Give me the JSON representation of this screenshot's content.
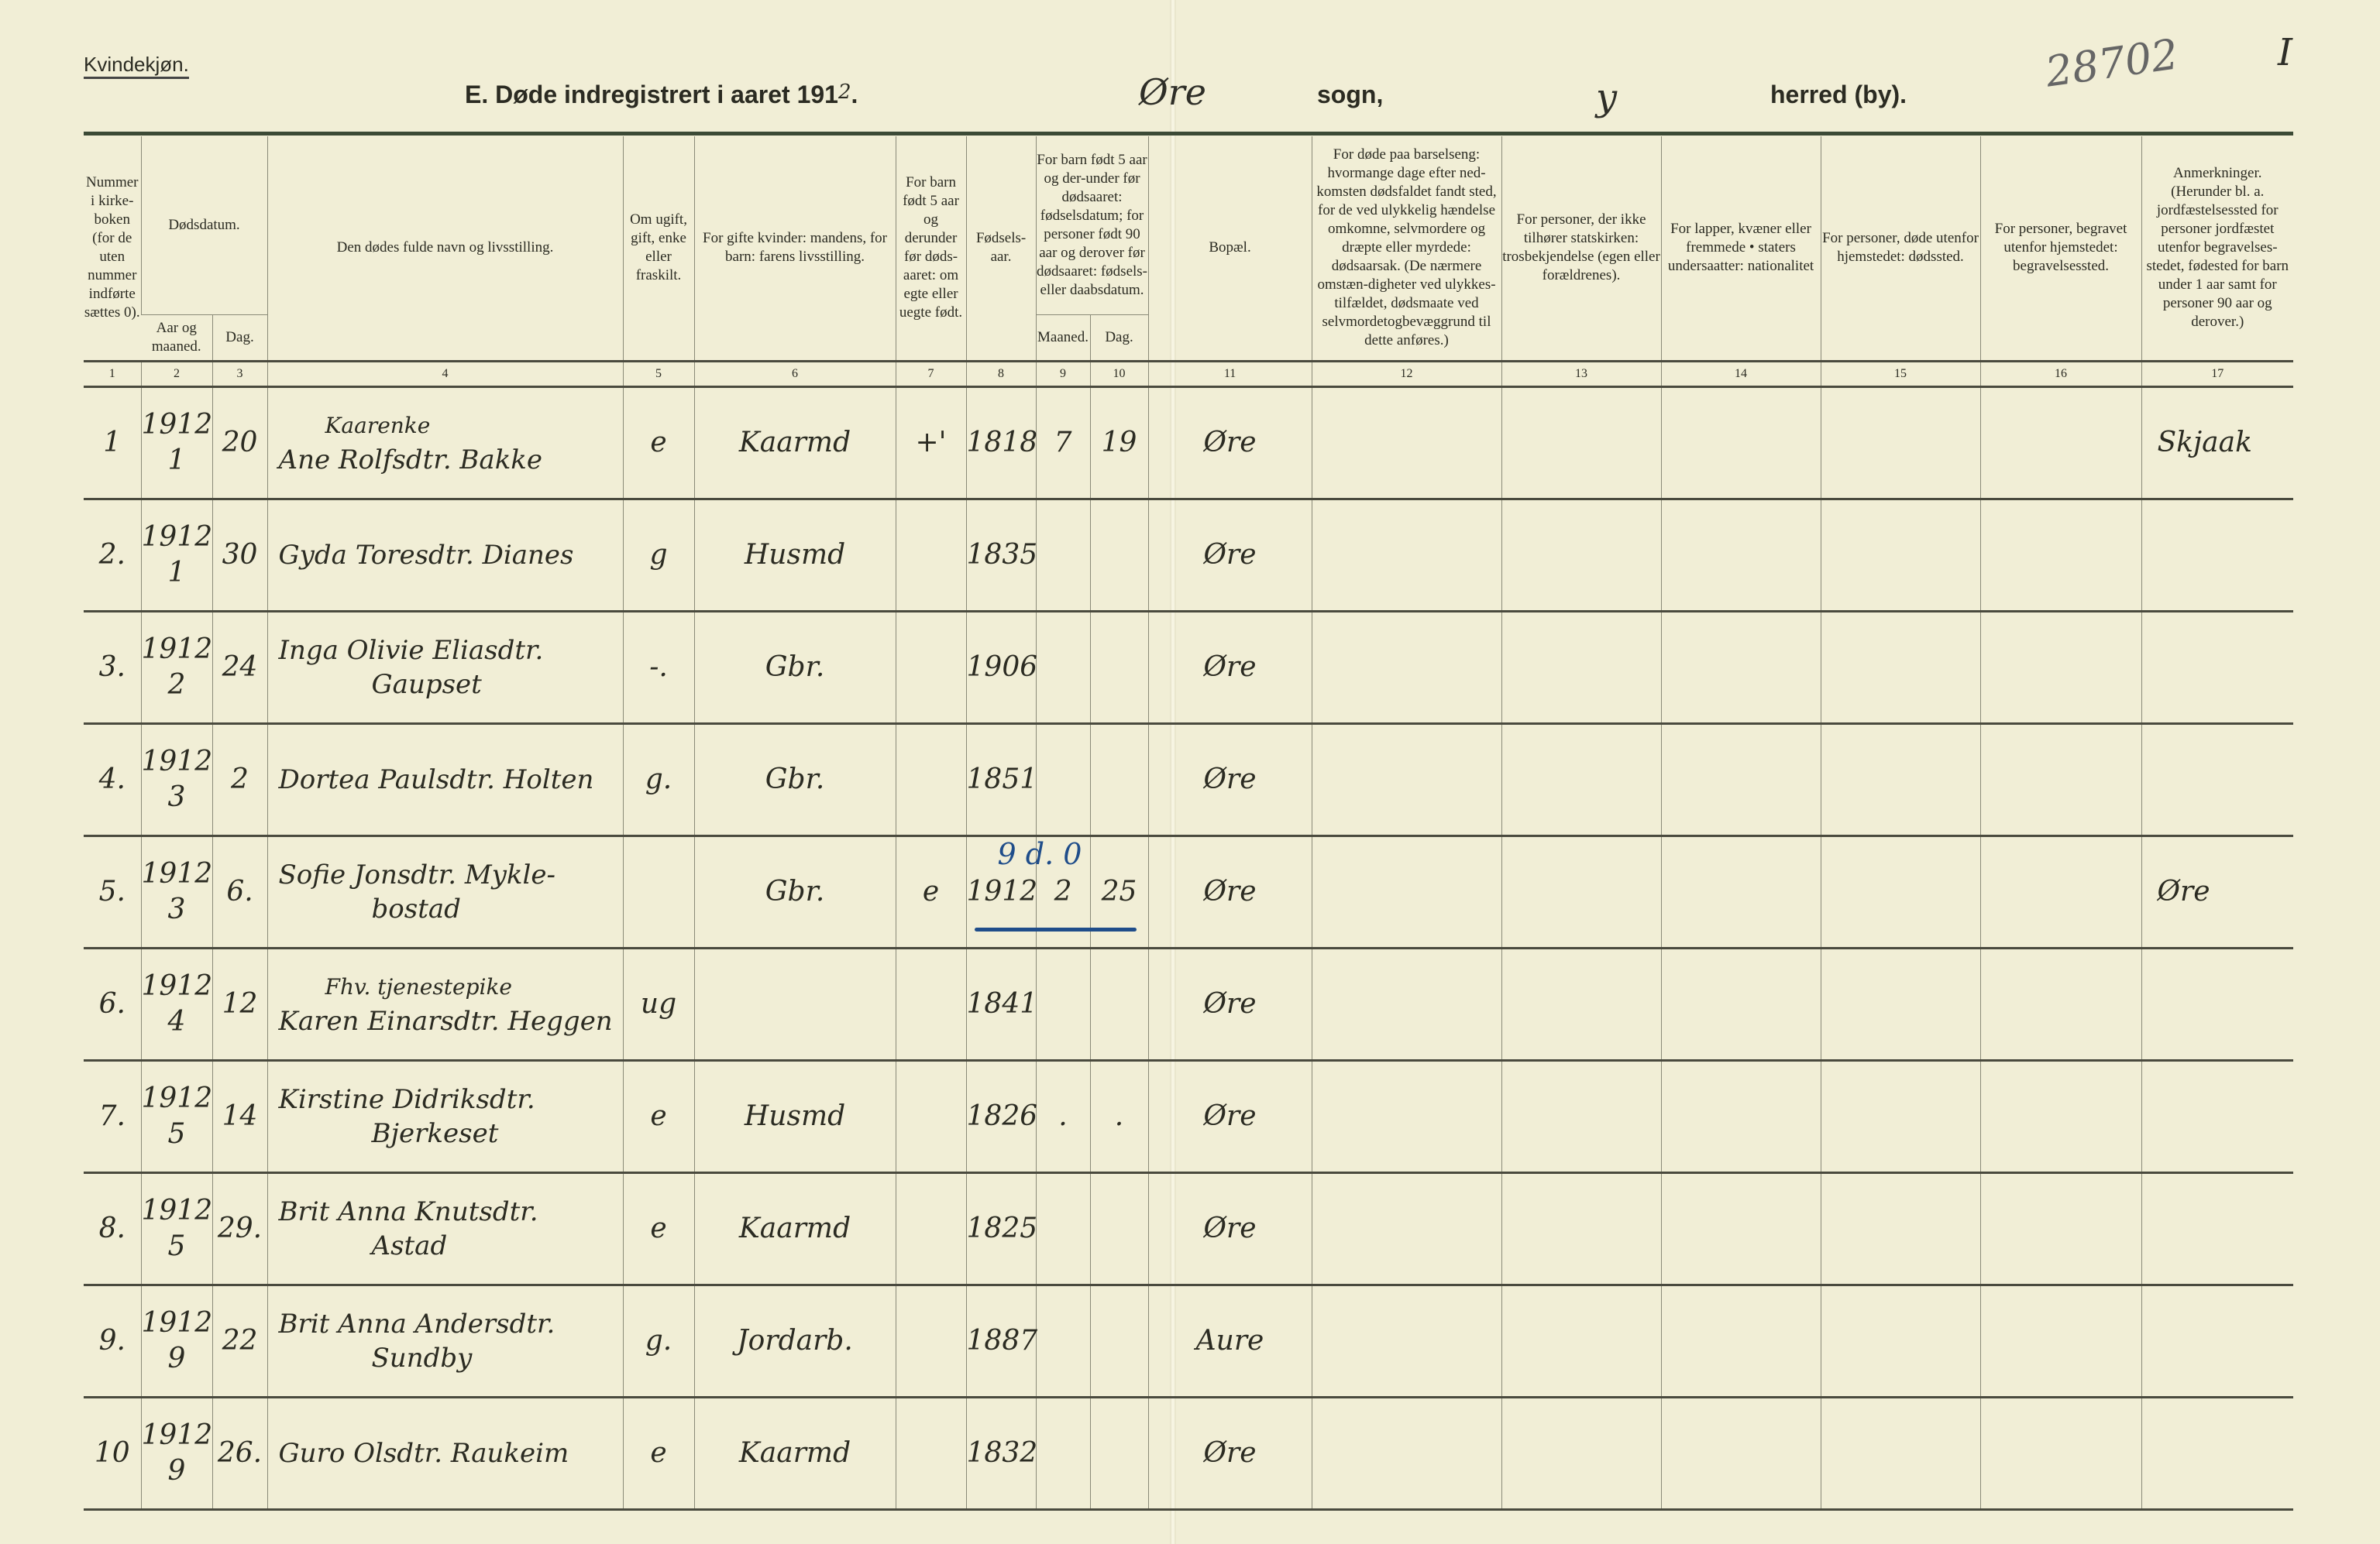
{
  "header": {
    "gender": "Kvindekjøn.",
    "title": "E. Døde indregistrert i aaret 191",
    "year_suffix": "2",
    "parish": "Øre",
    "sogn_label": "sogn,",
    "herred": "y",
    "herred_label": "herred (by).",
    "archive_number": "28702",
    "sheet": "I"
  },
  "columns": {
    "c1": "Nummer i kirke-boken (for de uten nummer indførte sættes 0).",
    "c2_3": "Dødsdatum.",
    "c2": "Aar og maaned.",
    "c3": "Dag.",
    "c4": "Den dødes fulde navn og livsstilling.",
    "c5": "Om ugift, gift, enke eller fraskilt.",
    "c6": "For gifte kvinder: mandens, for barn: farens livsstilling.",
    "c7": "For barn født 5 aar og derunder før døds-aaret: om egte eller uegte født.",
    "c8": "Fødsels-aar.",
    "c9_10": "For barn født 5 aar og der-under før dødsaaret: fødselsdatum; for personer født 90 aar og derover før dødsaaret: fødsels- eller daabsdatum.",
    "c9": "Maaned.",
    "c10": "Dag.",
    "c11": "Bopæl.",
    "c12": "For døde paa barselseng: hvormange dage efter ned-komsten dødsfaldet fandt sted, for de ved ulykkelig hændelse omkomne, selvmordere og dræpte eller myrdede: dødsaarsak. (De nærmere omstæn-digheter ved ulykkes-tilfældet, dødsmaate ved selvmordetogbevæggrund til dette anføres.)",
    "c13": "For personer, der ikke tilhører statskirken: trosbekjendelse (egen eller forældrenes).",
    "c14": "For lapper, kvæner eller fremmede • staters undersaatter: nationalitet",
    "c15": "For personer, døde utenfor hjemstedet: dødssted.",
    "c16": "For personer, begravet utenfor hjemstedet: begravelsessted.",
    "c17": "Anmerkninger. (Herunder bl. a. jordfæstelsessted for personer jordfæstet utenfor begravelses-stedet, fødested for barn under 1 aar samt for personer 90 aar og derover.)",
    "numbers": [
      "1",
      "2",
      "3",
      "4",
      "5",
      "6",
      "7",
      "8",
      "9",
      "10",
      "11",
      "12",
      "13",
      "14",
      "15",
      "16",
      "17"
    ]
  },
  "rows": [
    {
      "num": "1",
      "year": "1912",
      "month": "1",
      "day": "20",
      "above": "Kaarenke",
      "name": "Ane Rolfsdtr. Bakke",
      "below": "",
      "status": "e",
      "husband": "Kaarmd",
      "legit": "+'",
      "birth_year": "1818",
      "b_month": "7",
      "b_day": "19",
      "residence": "Øre",
      "remarks": "Skjaak",
      "annotation": ""
    },
    {
      "num": "2.",
      "year": "1912",
      "month": "1",
      "day": "30",
      "above": "",
      "name": "Gyda Toresdtr. Dianes",
      "below": "",
      "status": "g",
      "husband": "Husmd",
      "legit": "",
      "birth_year": "1835",
      "b_month": "",
      "b_day": "",
      "residence": "Øre",
      "remarks": "",
      "annotation": ""
    },
    {
      "num": "3.",
      "year": "1912",
      "month": "2",
      "day": "24",
      "above": "",
      "name": "Inga Olivie Eliasdtr.",
      "below": "Gaupset",
      "status": "-.",
      "husband": "Gbr.",
      "legit": "",
      "birth_year": "1906",
      "b_month": "",
      "b_day": "",
      "residence": "Øre",
      "remarks": "",
      "annotation": ""
    },
    {
      "num": "4.",
      "year": "1912",
      "month": "3",
      "day": "2",
      "above": "",
      "name": "Dortea Paulsdtr. Holten",
      "below": "",
      "status": "g.",
      "husband": "Gbr.",
      "legit": "",
      "birth_year": "1851",
      "b_month": "",
      "b_day": "",
      "residence": "Øre",
      "remarks": "",
      "annotation": ""
    },
    {
      "num": "5.",
      "year": "1912",
      "month": "3",
      "day": "6.",
      "above": "",
      "name": "Sofie Jonsdtr. Mykle-",
      "below": "bostad",
      "status": "",
      "husband": "Gbr.",
      "legit": "e",
      "birth_year": "1912",
      "b_month": "2",
      "b_day": "25",
      "residence": "Øre",
      "remarks": "Øre",
      "annotation": "9 d. 0"
    },
    {
      "num": "6.",
      "year": "1912",
      "month": "4",
      "day": "12",
      "above": "Fhv. tjenestepike",
      "name": "Karen Einarsdtr. Heggen",
      "below": "",
      "status": "ug",
      "husband": "",
      "legit": "",
      "birth_year": "1841",
      "b_month": "",
      "b_day": "",
      "residence": "Øre",
      "remarks": "",
      "annotation": ""
    },
    {
      "num": "7.",
      "year": "1912",
      "month": "5",
      "day": "14",
      "above": "",
      "name": "Kirstine Didriksdtr.",
      "below": "Bjerkeset",
      "status": "e",
      "husband": "Husmd",
      "legit": "",
      "birth_year": "1826",
      "b_month": ".",
      "b_day": ".",
      "residence": "Øre",
      "remarks": "",
      "annotation": ""
    },
    {
      "num": "8.",
      "year": "1912",
      "month": "5",
      "day": "29.",
      "above": "",
      "name": "Brit Anna Knutsdtr.",
      "below": "Astad",
      "status": "e",
      "husband": "Kaarmd",
      "legit": "",
      "birth_year": "1825",
      "b_month": "",
      "b_day": "",
      "residence": "Øre",
      "remarks": "",
      "annotation": ""
    },
    {
      "num": "9.",
      "year": "1912",
      "month": "9",
      "day": "22",
      "above": "",
      "name": "Brit Anna Andersdtr.",
      "below": "Sundby",
      "status": "g.",
      "husband": "Jordarb.",
      "legit": "",
      "birth_year": "1887",
      "b_month": "",
      "b_day": "",
      "residence": "Aure",
      "remarks": "",
      "annotation": ""
    },
    {
      "num": "10",
      "year": "1912",
      "month": "9",
      "day": "26.",
      "above": "",
      "name": "Guro Olsdtr. Raukeim",
      "below": "",
      "status": "e",
      "husband": "Kaarmd",
      "legit": "",
      "birth_year": "1832",
      "b_month": "",
      "b_day": "",
      "residence": "Øre",
      "remarks": "",
      "annotation": ""
    }
  ]
}
